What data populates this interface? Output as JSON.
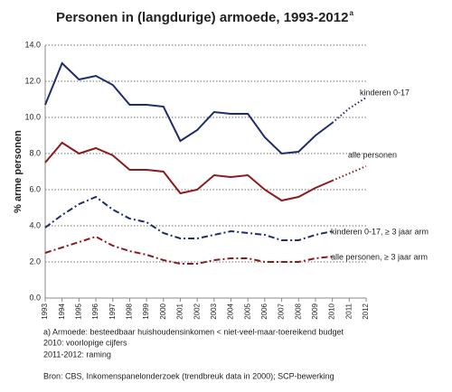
{
  "chart_data": {
    "type": "line",
    "title": "Personen in (langdurige) armoede, 1993-2012",
    "title_note": "a",
    "y_label": "% arme personen",
    "categories": [
      "1993",
      "1994",
      "1995",
      "1996",
      "1997",
      "1998",
      "1999",
      "2000",
      "2001",
      "2002",
      "2003",
      "2004",
      "2005",
      "2006",
      "2007",
      "2008",
      "2009",
      "2010",
      "2011",
      "2012"
    ],
    "dotted_from": "2010",
    "ylim": [
      0,
      14
    ],
    "yticks": [
      {
        "value": 0,
        "label": "0.0"
      },
      {
        "value": 2,
        "label": "2.0"
      },
      {
        "value": 4,
        "label": "4.0"
      },
      {
        "value": 6,
        "label": "6.0"
      },
      {
        "value": 8,
        "label": "8.0"
      },
      {
        "value": 10,
        "label": "10.0"
      },
      {
        "value": 12,
        "label": "12.0"
      },
      {
        "value": 14,
        "label": "14.0"
      }
    ],
    "grid": true,
    "series": [
      {
        "name": "kinderen 0-17",
        "color": "#1f2d6b",
        "dash": "solid",
        "values": [
          10.7,
          13.0,
          12.1,
          12.3,
          11.8,
          10.7,
          10.7,
          10.6,
          8.7,
          9.3,
          10.3,
          10.2,
          10.2,
          8.9,
          8.0,
          8.1,
          9.0,
          9.7,
          10.5,
          11.1
        ]
      },
      {
        "name": "alle personen",
        "color": "#8a1c1c",
        "dash": "solid",
        "values": [
          7.5,
          8.6,
          8.0,
          8.3,
          7.9,
          7.1,
          7.1,
          7.0,
          5.8,
          6.0,
          6.8,
          6.7,
          6.8,
          6.0,
          5.4,
          5.6,
          6.1,
          6.5,
          6.9,
          7.3
        ]
      },
      {
        "name": "kinderen 0-17, ≥ 3 jaar arm",
        "color": "#1f2d6b",
        "dash": "dashdot",
        "values": [
          3.9,
          4.6,
          5.2,
          5.6,
          4.9,
          4.4,
          4.2,
          3.6,
          3.3,
          3.3,
          3.5,
          3.7,
          3.6,
          3.5,
          3.2,
          3.2,
          3.5,
          3.7,
          null,
          null
        ]
      },
      {
        "name": "alle personen, ≥ 3 jaar arm",
        "color": "#8a1c1c",
        "dash": "dashdot",
        "values": [
          2.5,
          2.8,
          3.1,
          3.4,
          2.9,
          2.6,
          2.4,
          2.1,
          1.9,
          1.9,
          2.1,
          2.2,
          2.2,
          2.0,
          2.0,
          2.0,
          2.2,
          2.3,
          null,
          null
        ]
      }
    ],
    "notes": [
      "a) Armoede: besteedbaar huishoudensinkomen  < niet-veel-maar-toereikend budget",
      "2010: voorlopige cijfers",
      "2011-2012: raming"
    ],
    "source": "Bron: CBS, Inkomenspanelonderzoek  (trendbreuk data in 2000); SCP-bewerking"
  }
}
